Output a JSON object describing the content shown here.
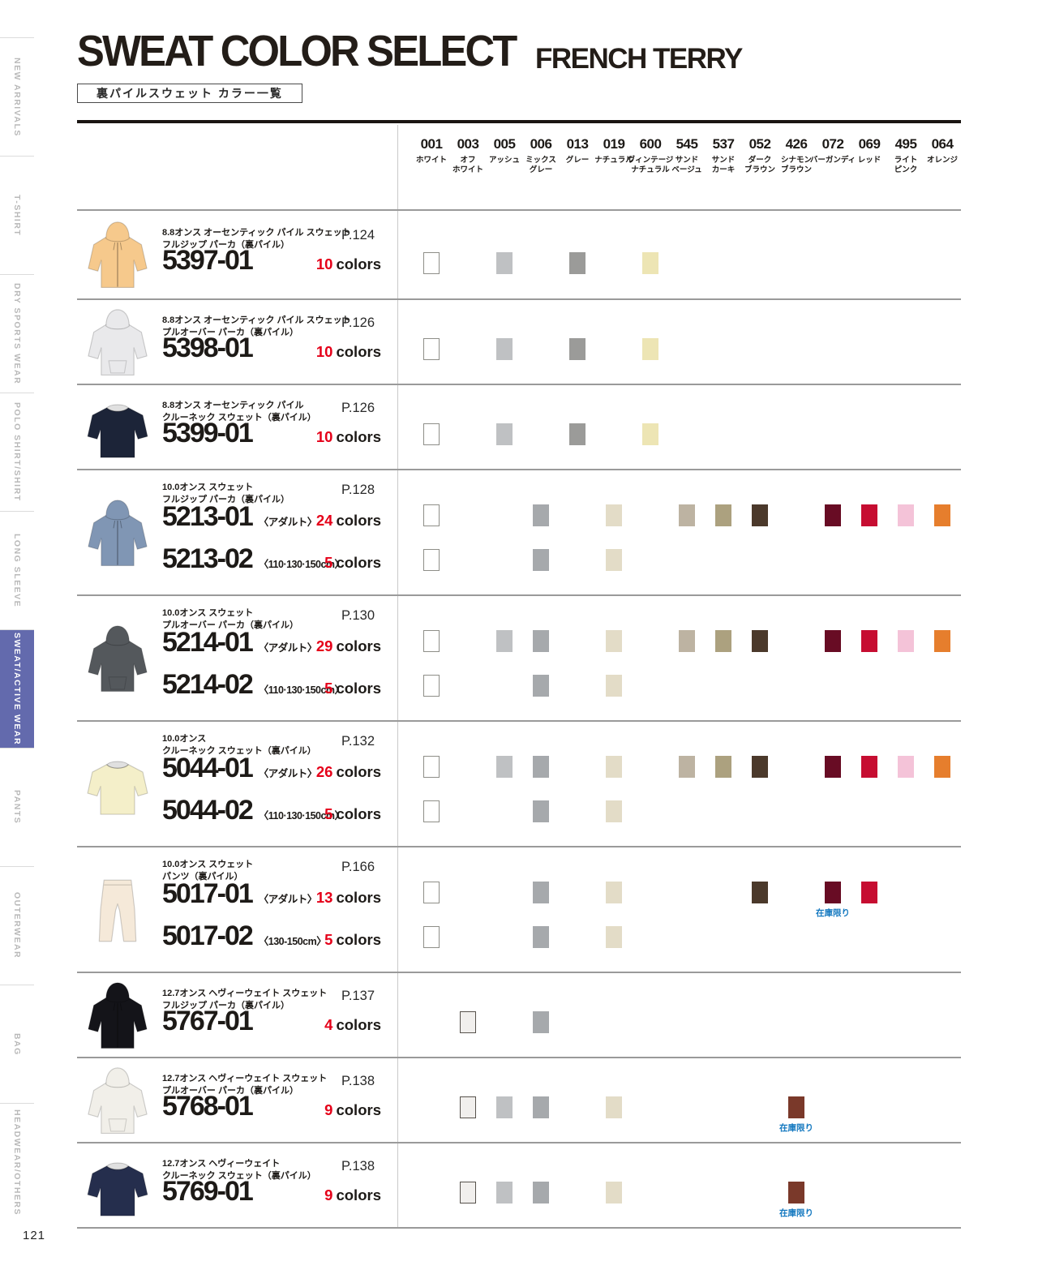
{
  "page_number": "121",
  "header": {
    "title": "SWEAT COLOR SELECT",
    "subtitle": "FRENCH TERRY",
    "tagline": "裏パイルスウェット カラー一覧"
  },
  "sidebar": {
    "items": [
      {
        "label": "NEW ARRIVALS",
        "active": false
      },
      {
        "label": "T-SHIRT",
        "active": false
      },
      {
        "label": "DRY SPORTS WEAR",
        "active": false
      },
      {
        "label": "POLO SHIRT/SHIRT",
        "active": false
      },
      {
        "label": "LONG SLEEVE",
        "active": false
      },
      {
        "label": "SWEAT/ACTIVE WEAR",
        "active": true
      },
      {
        "label": "PANTS",
        "active": false
      },
      {
        "label": "OUTERWEAR",
        "active": false
      },
      {
        "label": "BAG",
        "active": false
      },
      {
        "label": "HEADWEAR/OTHERS",
        "active": false
      }
    ]
  },
  "colors": {
    "accent_red": "#e50019",
    "stock_blue": "#1579c0",
    "active_tab_bg": "#636aad"
  },
  "stock_note_label": "在庫限り",
  "colors_suffix": "colors",
  "columns": [
    {
      "code": "001",
      "name_lines": [
        "ホワイト"
      ],
      "hex": "#ffffff",
      "border": "#8e8e88"
    },
    {
      "code": "003",
      "name_lines": [
        "オフ",
        "ホワイト"
      ],
      "hex": "#f1efed",
      "border": "#57524c"
    },
    {
      "code": "005",
      "name_lines": [
        "アッシュ"
      ],
      "hex": "#bfc1c3"
    },
    {
      "code": "006",
      "name_lines": [
        "ミックス",
        "グレー"
      ],
      "hex": "#a6a9ac"
    },
    {
      "code": "013",
      "name_lines": [
        "グレー"
      ],
      "hex": "#9b9b99"
    },
    {
      "code": "019",
      "name_lines": [
        "ナチュラル"
      ],
      "hex": "#e3dcc7"
    },
    {
      "code": "600",
      "name_lines": [
        "ヴィンテージ",
        "ナチュラル"
      ],
      "hex": "#ede5b4"
    },
    {
      "code": "545",
      "name_lines": [
        "サンド",
        "ベージュ"
      ],
      "hex": "#bdb3a2"
    },
    {
      "code": "537",
      "name_lines": [
        "サンド",
        "カーキ"
      ],
      "hex": "#aca17f"
    },
    {
      "code": "052",
      "name_lines": [
        "ダーク",
        "ブラウン"
      ],
      "hex": "#4b392b"
    },
    {
      "code": "426",
      "name_lines": [
        "シナモン",
        "ブラウン"
      ],
      "hex": "#7a392a"
    },
    {
      "code": "072",
      "name_lines": [
        "バーガンディ"
      ],
      "hex": "#680c24"
    },
    {
      "code": "069",
      "name_lines": [
        "レッド"
      ],
      "hex": "#c60d31"
    },
    {
      "code": "495",
      "name_lines": [
        "ライト",
        "ピンク"
      ],
      "hex": "#f4c3d8"
    },
    {
      "code": "064",
      "name_lines": [
        "オレンジ"
      ],
      "hex": "#e67e2d"
    }
  ],
  "rows": [
    {
      "desc_lines": [
        "8.8オンス オーセンティック パイル スウェット",
        "フルジップ パーカ（裏パイル）"
      ],
      "page": "P.124",
      "garment": {
        "type": "zip-hoodie",
        "hex": "#f6c98c"
      },
      "variants": [
        {
          "code": "5397-01",
          "size": "",
          "count": "10",
          "swatches": [
            "001",
            "005",
            "013",
            "600"
          ],
          "stock_limited": []
        }
      ]
    },
    {
      "desc_lines": [
        "8.8オンス オーセンティック パイル スウェット",
        "プルオーバー パーカ（裏パイル）"
      ],
      "page": "P.126",
      "garment": {
        "type": "hoodie",
        "hex": "#e9e9eb"
      },
      "variants": [
        {
          "code": "5398-01",
          "size": "",
          "count": "10",
          "swatches": [
            "001",
            "005",
            "013",
            "600"
          ],
          "stock_limited": []
        }
      ]
    },
    {
      "desc_lines": [
        "8.8オンス オーセンティック パイル",
        "クルーネック スウェット（裏パイル）"
      ],
      "page": "P.126",
      "garment": {
        "type": "crewneck",
        "hex": "#1c2438"
      },
      "variants": [
        {
          "code": "5399-01",
          "size": "",
          "count": "10",
          "swatches": [
            "001",
            "005",
            "013",
            "600"
          ],
          "stock_limited": []
        }
      ]
    },
    {
      "desc_lines": [
        "10.0オンス スウェット",
        "フルジップ パーカ（裏パイル）"
      ],
      "page": "P.128",
      "garment": {
        "type": "zip-hoodie",
        "hex": "#8096b4"
      },
      "variants": [
        {
          "code": "5213-01",
          "size": "〈アダルト〉",
          "count": "24",
          "swatches": [
            "001",
            "006",
            "019",
            "545",
            "537",
            "052",
            "072",
            "069",
            "495",
            "064"
          ],
          "stock_limited": []
        },
        {
          "code": "5213-02",
          "size": "〈110·130·150cm〉",
          "count": "5",
          "swatches": [
            "001",
            "006",
            "019"
          ],
          "stock_limited": []
        }
      ]
    },
    {
      "desc_lines": [
        "10.0オンス スウェット",
        "プルオーバー パーカ（裏パイル）"
      ],
      "page": "P.130",
      "garment": {
        "type": "hoodie",
        "hex": "#54585c"
      },
      "variants": [
        {
          "code": "5214-01",
          "size": "〈アダルト〉",
          "count": "29",
          "swatches": [
            "001",
            "005",
            "006",
            "019",
            "545",
            "537",
            "052",
            "072",
            "069",
            "495",
            "064"
          ],
          "stock_limited": []
        },
        {
          "code": "5214-02",
          "size": "〈110·130·150cm〉",
          "count": "5",
          "swatches": [
            "001",
            "006",
            "019"
          ],
          "stock_limited": []
        }
      ]
    },
    {
      "desc_lines": [
        "10.0オンス",
        "クルーネック スウェット（裏パイル）"
      ],
      "page": "P.132",
      "garment": {
        "type": "crewneck",
        "hex": "#f4efc9"
      },
      "variants": [
        {
          "code": "5044-01",
          "size": "〈アダルト〉",
          "count": "26",
          "swatches": [
            "001",
            "005",
            "006",
            "019",
            "545",
            "537",
            "052",
            "072",
            "069",
            "495",
            "064"
          ],
          "stock_limited": []
        },
        {
          "code": "5044-02",
          "size": "〈110·130·150cm〉",
          "count": "5",
          "swatches": [
            "001",
            "006",
            "019"
          ],
          "stock_limited": []
        }
      ]
    },
    {
      "desc_lines": [
        "10.0オンス スウェット",
        "パンツ（裏パイル）"
      ],
      "page": "P.166",
      "garment": {
        "type": "pants",
        "hex": "#f5e9d9"
      },
      "variants": [
        {
          "code": "5017-01",
          "size": "〈アダルト〉",
          "count": "13",
          "swatches": [
            "001",
            "006",
            "019",
            "052",
            "072",
            "069"
          ],
          "stock_limited": [
            "072"
          ]
        },
        {
          "code": "5017-02",
          "size": "〈130-150cm〉",
          "count": "5",
          "swatches": [
            "001",
            "006",
            "019"
          ],
          "stock_limited": []
        }
      ]
    },
    {
      "desc_lines": [
        "12.7オンス ヘヴィーウェイト スウェット",
        "フルジップ パーカ（裏パイル）"
      ],
      "page": "P.137",
      "garment": {
        "type": "zip-hoodie",
        "hex": "#141419"
      },
      "variants": [
        {
          "code": "5767-01",
          "size": "",
          "count": "4",
          "swatches": [
            "003",
            "006"
          ],
          "stock_limited": []
        }
      ]
    },
    {
      "desc_lines": [
        "12.7オンス ヘヴィーウェイト スウェット",
        "プルオーバー パーカ（裏パイル）"
      ],
      "page": "P.138",
      "garment": {
        "type": "hoodie",
        "hex": "#f1efe9"
      },
      "variants": [
        {
          "code": "5768-01",
          "size": "",
          "count": "9",
          "swatches": [
            "003",
            "005",
            "006",
            "019",
            "426"
          ],
          "stock_limited": [
            "426"
          ]
        }
      ]
    },
    {
      "desc_lines": [
        "12.7オンス ヘヴィーウェイト",
        "クルーネック スウェット（裏パイル）"
      ],
      "page": "P.138",
      "garment": {
        "type": "crewneck",
        "hex": "#252e4d"
      },
      "variants": [
        {
          "code": "5769-01",
          "size": "",
          "count": "9",
          "swatches": [
            "003",
            "005",
            "006",
            "019",
            "426"
          ],
          "stock_limited": [
            "426"
          ]
        }
      ]
    }
  ]
}
